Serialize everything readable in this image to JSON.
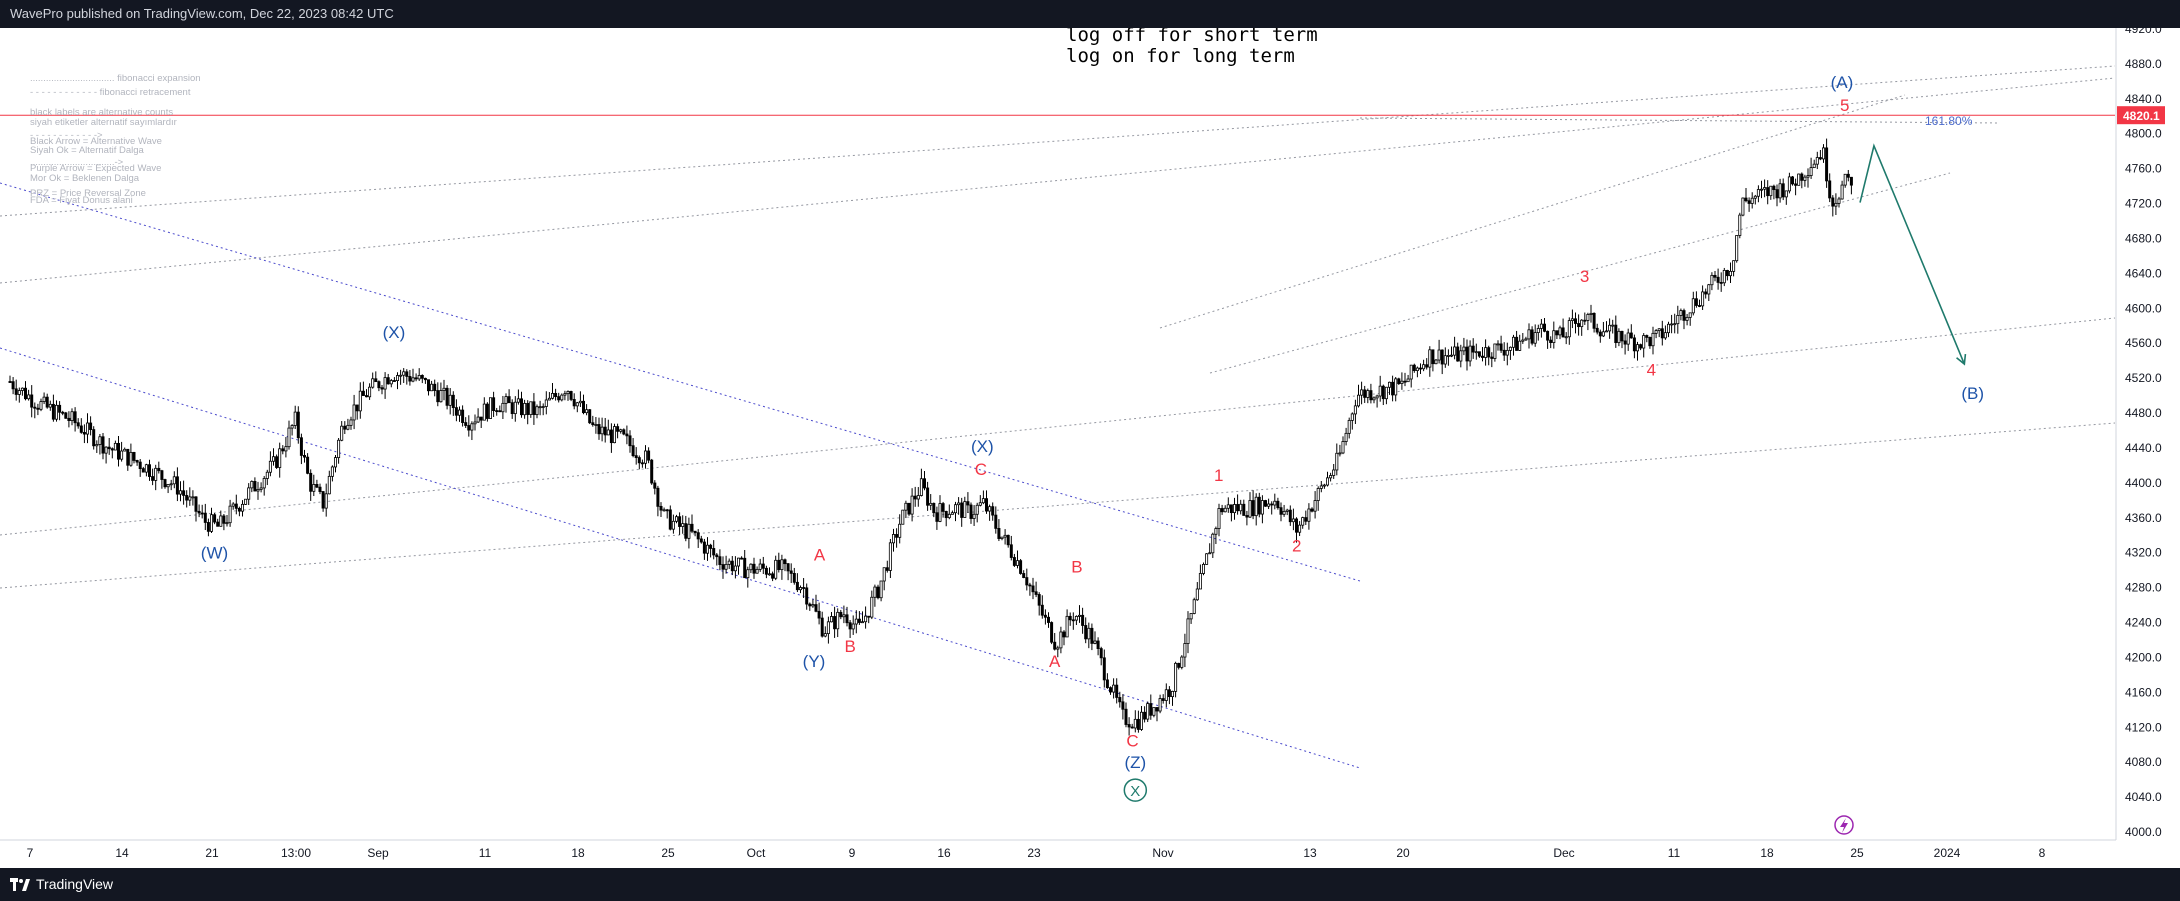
{
  "header": {
    "published_text": "WavePro published on TradingView.com, Dec 22, 2023 08:42 UTC"
  },
  "footer": {
    "brand": "TradingView",
    "logo_icon": "tradingview-logo-icon"
  },
  "notes": {
    "log_off": "log off for short term",
    "log_on": "log on for long term"
  },
  "legend": [
    "................................ fibonacci expansion",
    "- - - - - - - - - - - - fibonacci retracement",
    "black labels are alternative counts",
    "siyah etiketler alternatif sayımlardır",
    "- - - - - - - - - - - ->",
    "Black Arrow = Alternative Wave",
    "Siyah Ok = Alternatif Dalga",
    "................................->",
    "Purple Arrow = Expected Wave",
    "Mor Ok = Beklenen Dalga",
    "PRZ = Price Reversal Zone",
    "FDA = Fiyat Donus alani"
  ],
  "price_marker": {
    "value": "4820.1",
    "color": "#f23645"
  },
  "fib_label": "161.80%",
  "colors": {
    "up": "#000000",
    "wave_blue": "#1e53a8",
    "wave_red": "#f23645",
    "arrow": "#1f7a6c",
    "channel": "#4b4bcc"
  },
  "chart_data": {
    "type": "candlestick",
    "y_ticks": [
      "4920.0",
      "4880.0",
      "4840.0",
      "4800.0",
      "4760.0",
      "4720.0",
      "4680.0",
      "4640.0",
      "4600.0",
      "4560.0",
      "4520.0",
      "4480.0",
      "4440.0",
      "4400.0",
      "4360.0",
      "4320.0",
      "4280.0",
      "4240.0",
      "4200.0",
      "4160.0",
      "4120.0",
      "4080.0",
      "4040.0",
      "4000.0"
    ],
    "x_ticks": [
      "7",
      "14",
      "21",
      "13:00",
      "Sep",
      "11",
      "18",
      "25",
      "Oct",
      "9",
      "16",
      "23",
      "Nov",
      "13",
      "20",
      "Dec",
      "11",
      "18",
      "25",
      "2024",
      "8"
    ],
    "ylim": [
      4000,
      4920
    ],
    "price_path": [
      [
        0,
        4515
      ],
      [
        20,
        4490
      ],
      [
        45,
        4470
      ],
      [
        70,
        4440
      ],
      [
        95,
        4420
      ],
      [
        120,
        4395
      ],
      [
        140,
        4355
      ],
      [
        150,
        4348
      ],
      [
        170,
        4385
      ],
      [
        190,
        4420
      ],
      [
        205,
        4470
      ],
      [
        215,
        4400
      ],
      [
        225,
        4375
      ],
      [
        240,
        4470
      ],
      [
        258,
        4505
      ],
      [
        275,
        4525
      ],
      [
        290,
        4520
      ],
      [
        310,
        4500
      ],
      [
        330,
        4470
      ],
      [
        350,
        4490
      ],
      [
        380,
        4480
      ],
      [
        400,
        4510
      ],
      [
        420,
        4460
      ],
      [
        440,
        4450
      ],
      [
        458,
        4425
      ],
      [
        470,
        4360
      ],
      [
        490,
        4340
      ],
      [
        510,
        4310
      ],
      [
        530,
        4300
      ],
      [
        555,
        4300
      ],
      [
        570,
        4280
      ],
      [
        585,
        4230
      ],
      [
        600,
        4250
      ],
      [
        610,
        4230
      ],
      [
        625,
        4280
      ],
      [
        640,
        4355
      ],
      [
        655,
        4395
      ],
      [
        665,
        4365
      ],
      [
        680,
        4370
      ],
      [
        690,
        4365
      ],
      [
        700,
        4375
      ],
      [
        712,
        4340
      ],
      [
        728,
        4300
      ],
      [
        740,
        4255
      ],
      [
        752,
        4215
      ],
      [
        765,
        4250
      ],
      [
        778,
        4220
      ],
      [
        790,
        4170
      ],
      [
        800,
        4130
      ],
      [
        810,
        4125
      ],
      [
        820,
        4140
      ],
      [
        835,
        4165
      ],
      [
        850,
        4250
      ],
      [
        870,
        4370
      ],
      [
        890,
        4370
      ],
      [
        910,
        4380
      ],
      [
        925,
        4345
      ],
      [
        940,
        4385
      ],
      [
        955,
        4425
      ],
      [
        968,
        4500
      ],
      [
        985,
        4505
      ],
      [
        1000,
        4510
      ],
      [
        1020,
        4545
      ],
      [
        1040,
        4545
      ],
      [
        1060,
        4550
      ],
      [
        1080,
        4555
      ],
      [
        1100,
        4575
      ],
      [
        1115,
        4565
      ],
      [
        1130,
        4590
      ],
      [
        1150,
        4570
      ],
      [
        1170,
        4560
      ],
      [
        1185,
        4565
      ],
      [
        1200,
        4590
      ],
      [
        1220,
        4620
      ],
      [
        1238,
        4650
      ],
      [
        1245,
        4720
      ],
      [
        1260,
        4730
      ],
      [
        1280,
        4740
      ],
      [
        1295,
        4765
      ],
      [
        1303,
        4780
      ],
      [
        1310,
        4720
      ],
      [
        1318,
        4740
      ],
      [
        1326,
        4750
      ]
    ],
    "wave_labels": [
      {
        "text": "(W)",
        "x": 147,
        "price": 4312,
        "color": "blue"
      },
      {
        "text": "(X)",
        "x": 276,
        "price": 4565,
        "color": "blue"
      },
      {
        "text": "(Y)",
        "x": 578,
        "price": 4188,
        "color": "blue"
      },
      {
        "text": "A",
        "x": 582,
        "price": 4310,
        "color": "red"
      },
      {
        "text": "B",
        "x": 604,
        "price": 4205,
        "color": "red"
      },
      {
        "text": "(X)",
        "x": 699,
        "price": 4434,
        "color": "blue"
      },
      {
        "text": "C",
        "x": 698,
        "price": 4408,
        "color": "red"
      },
      {
        "text": "B",
        "x": 767,
        "price": 4296,
        "color": "red"
      },
      {
        "text": "A",
        "x": 751,
        "price": 4188,
        "color": "red"
      },
      {
        "text": "C",
        "x": 807,
        "price": 4097,
        "color": "red"
      },
      {
        "text": "(Z)",
        "x": 809,
        "price": 4072,
        "color": "blue"
      },
      {
        "text": "1",
        "x": 869,
        "price": 4401,
        "color": "red"
      },
      {
        "text": "2",
        "x": 925,
        "price": 4320,
        "color": "red"
      },
      {
        "text": "3",
        "x": 1132,
        "price": 4629,
        "color": "red"
      },
      {
        "text": "4",
        "x": 1180,
        "price": 4522,
        "color": "red"
      },
      {
        "text": "(A)",
        "x": 1317,
        "price": 4851,
        "color": "blue"
      },
      {
        "text": "5",
        "x": 1319,
        "price": 4825,
        "color": "red"
      },
      {
        "text": "(B)",
        "x": 1411,
        "price": 4495,
        "color": "blue"
      }
    ],
    "circled_label": {
      "text": "X",
      "x": 809,
      "price": 4040
    },
    "projected_path": [
      [
        1330,
        4720
      ],
      [
        1340,
        4785
      ],
      [
        1405,
        4535
      ]
    ]
  }
}
